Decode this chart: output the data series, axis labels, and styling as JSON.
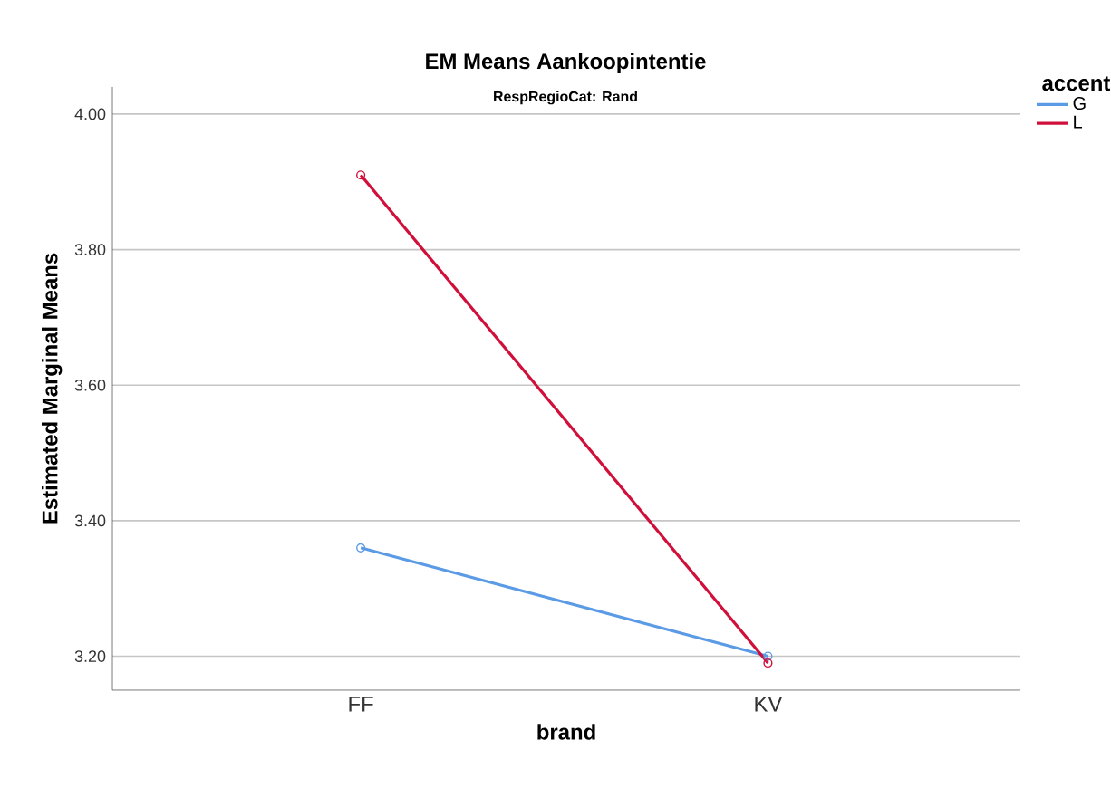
{
  "chart_data": {
    "type": "line",
    "title": "EM Means Aankoopintentie",
    "subtitle": "RespRegioCat: Rand",
    "xlabel": "brand",
    "ylabel": "Estimated Marginal Means",
    "legend_title": "accent",
    "categories": [
      "FF",
      "KV"
    ],
    "series": [
      {
        "name": "G",
        "color": "#5b9be6",
        "values": [
          3.36,
          3.2
        ]
      },
      {
        "name": "L",
        "color": "#d0103a",
        "values": [
          3.91,
          3.19
        ]
      }
    ],
    "ylim": [
      3.15,
      4.04
    ],
    "yticks": [
      {
        "value": 3.2,
        "label": "3.20"
      },
      {
        "value": 3.4,
        "label": "3.40"
      },
      {
        "value": 3.6,
        "label": "3.60"
      },
      {
        "value": 3.8,
        "label": "3.80"
      },
      {
        "value": 4.0,
        "label": "4.00"
      }
    ],
    "grid": "y",
    "legend": "top right",
    "marker": "circle",
    "line_style": "solid"
  }
}
